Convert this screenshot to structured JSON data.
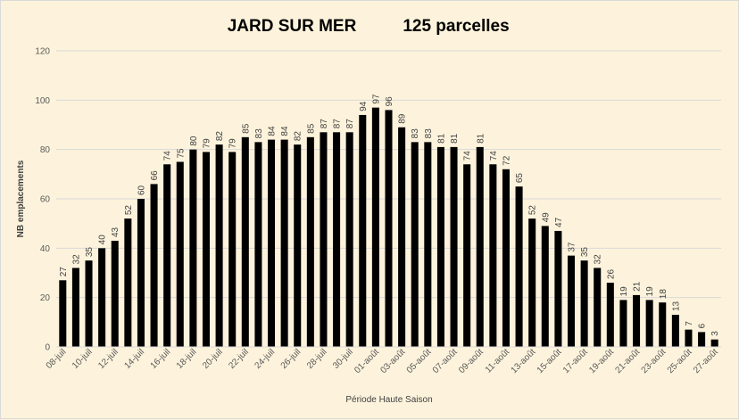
{
  "chart_data": {
    "type": "bar",
    "title": "JARD SUR MER",
    "subtitle": "125 parcelles",
    "xlabel": "Période Haute Saison",
    "ylabel": "NB emplacements",
    "ylim": [
      0,
      120
    ],
    "yticks": [
      "0",
      "20",
      "40",
      "60",
      "80",
      "100",
      "120"
    ],
    "grid": true,
    "bar_color": "#000000",
    "categories": [
      "08-juil",
      "09-juil",
      "10-juil",
      "11-juil",
      "12-juil",
      "13-juil",
      "14-juil",
      "15-juil",
      "16-juil",
      "17-juil",
      "18-juil",
      "19-juil",
      "20-juil",
      "21-juil",
      "22-juil",
      "23-juil",
      "24-juil",
      "25-juil",
      "26-juil",
      "27-juil",
      "28-juil",
      "29-juil",
      "30-juil",
      "31-juil",
      "01-août",
      "02-août",
      "03-août",
      "04-août",
      "05-août",
      "06-août",
      "07-août",
      "08-août",
      "09-août",
      "10-août",
      "11-août",
      "12-août",
      "13-août",
      "14-août",
      "15-août",
      "16-août",
      "17-août",
      "18-août",
      "19-août",
      "20-août",
      "21-août",
      "22-août",
      "23-août",
      "24-août",
      "25-août",
      "26-août",
      "27-août"
    ],
    "values": [
      27,
      32,
      35,
      40,
      43,
      52,
      60,
      66,
      74,
      75,
      80,
      79,
      82,
      79,
      85,
      83,
      84,
      84,
      82,
      85,
      87,
      87,
      87,
      94,
      97,
      96,
      89,
      83,
      83,
      81,
      81,
      74,
      81,
      74,
      72,
      65,
      52,
      49,
      47,
      37,
      35,
      32,
      26,
      19,
      21,
      19,
      18,
      13,
      7,
      6,
      3
    ]
  }
}
